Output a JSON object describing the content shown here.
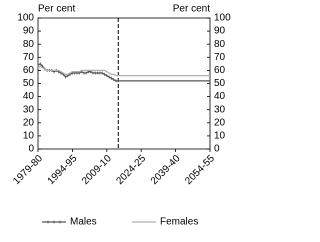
{
  "chart_data": {
    "type": "line",
    "y_label": "Per cent",
    "y2_label": "Per cent",
    "xlim": [
      1979,
      2054
    ],
    "xticks": [
      {
        "value": 1979,
        "label": "1979-80"
      },
      {
        "value": 1994,
        "label": "1994-95"
      },
      {
        "value": 2009,
        "label": "2009-10"
      },
      {
        "value": 2024,
        "label": "2024-25"
      },
      {
        "value": 2039,
        "label": "2039-40"
      },
      {
        "value": 2054,
        "label": "2054-55"
      }
    ],
    "ylim": [
      0,
      100
    ],
    "yticks": [
      0,
      10,
      20,
      30,
      40,
      50,
      60,
      70,
      80,
      90,
      100
    ],
    "y2lim": [
      0,
      100
    ],
    "y2ticks": [
      0,
      10,
      20,
      30,
      40,
      50,
      60,
      70,
      80,
      90,
      100
    ],
    "vline": {
      "x": 2014,
      "style": "dashed",
      "color": "#000000"
    },
    "legend": "bottom",
    "x": [
      1979,
      1980,
      1981,
      1982,
      1983,
      1984,
      1985,
      1986,
      1987,
      1988,
      1989,
      1990,
      1991,
      1992,
      1993,
      1994,
      1995,
      1996,
      1997,
      1998,
      1999,
      2000,
      2001,
      2002,
      2003,
      2004,
      2005,
      2006,
      2007,
      2008,
      2009,
      2010,
      2011,
      2012,
      2013,
      2014,
      2020,
      2030,
      2040,
      2054
    ],
    "series": [
      {
        "name": "Males",
        "color": "#555555",
        "markers": true,
        "values": [
          64,
          65,
          63,
          61,
          60,
          60,
          60,
          59,
          60,
          59,
          58,
          57,
          55,
          56,
          57,
          58,
          58,
          58,
          58,
          59,
          58,
          58,
          59,
          59,
          58,
          58,
          58,
          58,
          58,
          57,
          56,
          55,
          54,
          53,
          52,
          52,
          52,
          52,
          52,
          52
        ]
      },
      {
        "name": "Females",
        "color": "#b0b0b0",
        "markers": false,
        "values": [
          62,
          63,
          62,
          61,
          60,
          60,
          60,
          60,
          60,
          60,
          59,
          58,
          57,
          57,
          58,
          59,
          59,
          59,
          59,
          60,
          60,
          60,
          60,
          60,
          60,
          60,
          60,
          60,
          60,
          60,
          59,
          58,
          57,
          57,
          56,
          56,
          56,
          56,
          56,
          56
        ]
      }
    ]
  }
}
